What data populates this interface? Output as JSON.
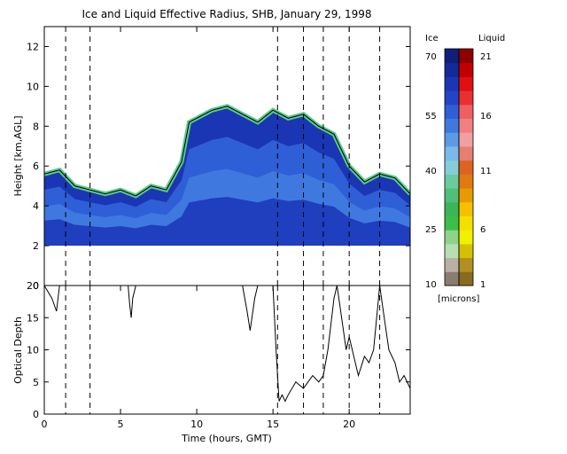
{
  "chart_data": [
    {
      "type": "heatmap",
      "title": "Ice and Liquid Effective Radius, SHB, January 29, 1998",
      "ylabel": "Height [km,AGL]",
      "xlim": [
        0,
        24
      ],
      "ylim": [
        0,
        13
      ],
      "yticks": [
        0,
        2,
        4,
        6,
        8,
        10,
        12
      ],
      "data_floor_km": 2,
      "dashed_times": [
        1.4,
        3.0,
        15.3,
        17.0,
        18.3,
        20.0,
        22.0
      ],
      "cloud_top_km": [
        [
          0,
          5.6
        ],
        [
          1,
          5.8
        ],
        [
          2,
          5.0
        ],
        [
          3,
          4.8
        ],
        [
          4,
          4.6
        ],
        [
          5,
          4.8
        ],
        [
          6,
          4.5
        ],
        [
          7,
          5.0
        ],
        [
          8,
          4.8
        ],
        [
          9,
          6.2
        ],
        [
          9.5,
          8.2
        ],
        [
          10,
          8.4
        ],
        [
          11,
          8.8
        ],
        [
          12,
          9.0
        ],
        [
          13,
          8.6
        ],
        [
          14,
          8.2
        ],
        [
          15,
          8.8
        ],
        [
          16,
          8.4
        ],
        [
          17,
          8.6
        ],
        [
          18,
          8.0
        ],
        [
          19,
          7.6
        ],
        [
          20,
          6.0
        ],
        [
          21,
          5.2
        ],
        [
          22,
          5.6
        ],
        [
          23,
          5.4
        ],
        [
          24,
          4.6
        ]
      ]
    },
    {
      "type": "line",
      "xlabel": "Time (hours, GMT)",
      "ylabel": "Optical Depth",
      "xlim": [
        0,
        24
      ],
      "ylim": [
        0,
        20
      ],
      "xticks": [
        0,
        5,
        10,
        15,
        20
      ],
      "yticks": [
        0,
        5,
        10,
        15,
        20
      ],
      "dashed_times": [
        1.4,
        3.0,
        15.3,
        17.0,
        18.3,
        20.0,
        22.0
      ],
      "x": [
        0.0,
        0.5,
        0.8,
        1.0,
        1.2,
        1.4,
        5.5,
        5.6,
        5.7,
        5.8,
        6.0,
        13.0,
        13.3,
        13.5,
        13.8,
        14.0,
        15.0,
        15.2,
        15.4,
        15.6,
        15.8,
        16.0,
        16.5,
        17.0,
        17.3,
        17.6,
        18.0,
        18.3,
        18.6,
        19.0,
        19.2,
        19.5,
        19.8,
        20.0,
        20.3,
        20.6,
        21.0,
        21.3,
        21.6,
        22.0,
        22.3,
        22.6,
        23.0,
        23.3,
        23.6,
        24.0
      ],
      "y": [
        20,
        18,
        16,
        20,
        20,
        20,
        20,
        17,
        15,
        18,
        20,
        20,
        16,
        13,
        18,
        20,
        20,
        10,
        2,
        3,
        2,
        3,
        5,
        4,
        5,
        6,
        5,
        6,
        10,
        18,
        20,
        15,
        10,
        12,
        9,
        6,
        9,
        8,
        10,
        20,
        15,
        10,
        8,
        5,
        6,
        4
      ]
    }
  ],
  "colorbar": {
    "ice_header": "Ice",
    "liquid_header": "Liquid",
    "units": "[microns]",
    "ice_ticks": [
      "70",
      "55",
      "40",
      "25",
      "10"
    ],
    "liquid_ticks": [
      "21",
      "16",
      "11",
      "6",
      "1"
    ],
    "ice_colors": [
      "#8a7d70",
      "#b8b0a6",
      "#b7dfb2",
      "#8ed38a",
      "#3bbf4a",
      "#3db35a",
      "#4fbf7a",
      "#6acb9e",
      "#86cdd9",
      "#7ab9e8",
      "#5d9ae6",
      "#3f79e0",
      "#2f5fd6",
      "#2245c8",
      "#1a36b5",
      "#142a9a",
      "#0f1f7a"
    ],
    "liquid_colors": [
      "#8a6a20",
      "#b09020",
      "#d4c000",
      "#f0f000",
      "#f4e000",
      "#f4c000",
      "#e69c00",
      "#e07a10",
      "#dc6420",
      "#e48070",
      "#f0a0a0",
      "#f08080",
      "#ee6060",
      "#e83030",
      "#e01010",
      "#c00000",
      "#900000"
    ]
  }
}
